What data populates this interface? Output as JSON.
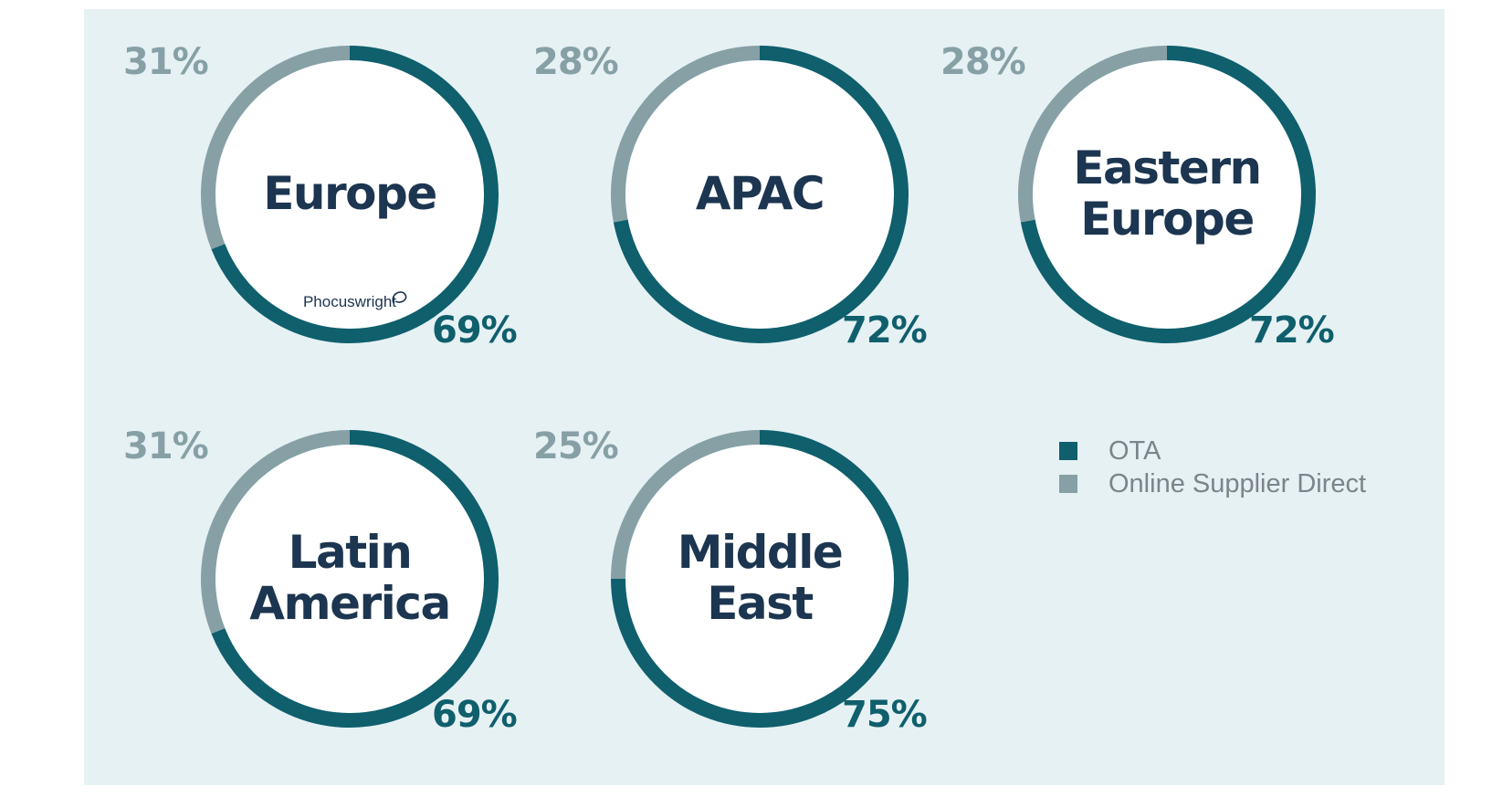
{
  "colors": {
    "ota": "#0f5f6d",
    "supplier": "#86a0a6",
    "panel": "#e6f1f4",
    "label": "#1c3550"
  },
  "legend": [
    {
      "label": "OTA",
      "color": "#0f5f6d"
    },
    {
      "label": "Online Supplier Direct",
      "color": "#86a0a6"
    }
  ],
  "watermark": "Phocuswright",
  "chart_data": {
    "type": "pie",
    "series_names": [
      "OTA",
      "Online Supplier Direct"
    ],
    "charts": [
      {
        "region": [
          "Europe"
        ],
        "ota": 69,
        "supplier": 31,
        "ota_label": "69%",
        "supplier_label": "31%"
      },
      {
        "region": [
          "APAC"
        ],
        "ota": 72,
        "supplier": 28,
        "ota_label": "72%",
        "supplier_label": "28%"
      },
      {
        "region": [
          "Eastern",
          "Europe"
        ],
        "ota": 72,
        "supplier": 28,
        "ota_label": "72%",
        "supplier_label": "28%"
      },
      {
        "region": [
          "Latin",
          "America"
        ],
        "ota": 69,
        "supplier": 31,
        "ota_label": "69%",
        "supplier_label": "31%"
      },
      {
        "region": [
          "Middle",
          "East"
        ],
        "ota": 75,
        "supplier": 25,
        "ota_label": "75%",
        "supplier_label": "25%"
      }
    ]
  }
}
